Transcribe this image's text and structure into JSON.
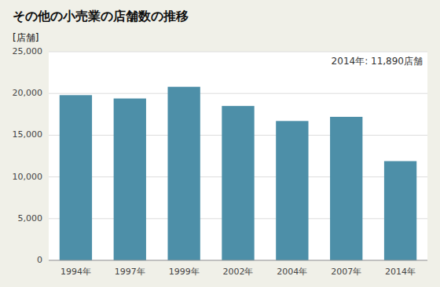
{
  "chart_data": {
    "type": "bar",
    "title": "その他の小売業の店舗数の推移",
    "ylabel": "[店舗]",
    "annotation": "2014年: 11,890店舗",
    "categories": [
      "1994年",
      "1997年",
      "1999年",
      "2002年",
      "2004年",
      "2007年",
      "2014年"
    ],
    "values": [
      19800,
      19400,
      20800,
      18500,
      16700,
      17200,
      11890
    ],
    "color": "#4d8fa8",
    "ylim": [
      0,
      25000
    ],
    "yticks": [
      0,
      {
        "value": 5000,
        "label": "5,000"
      },
      {
        "value": 10000,
        "label": "10,000"
      },
      {
        "value": 15000,
        "label": "15,000"
      },
      {
        "value": 20000,
        "label": "20,000"
      },
      {
        "value": 25000,
        "label": "25,000"
      }
    ],
    "grid": true
  }
}
